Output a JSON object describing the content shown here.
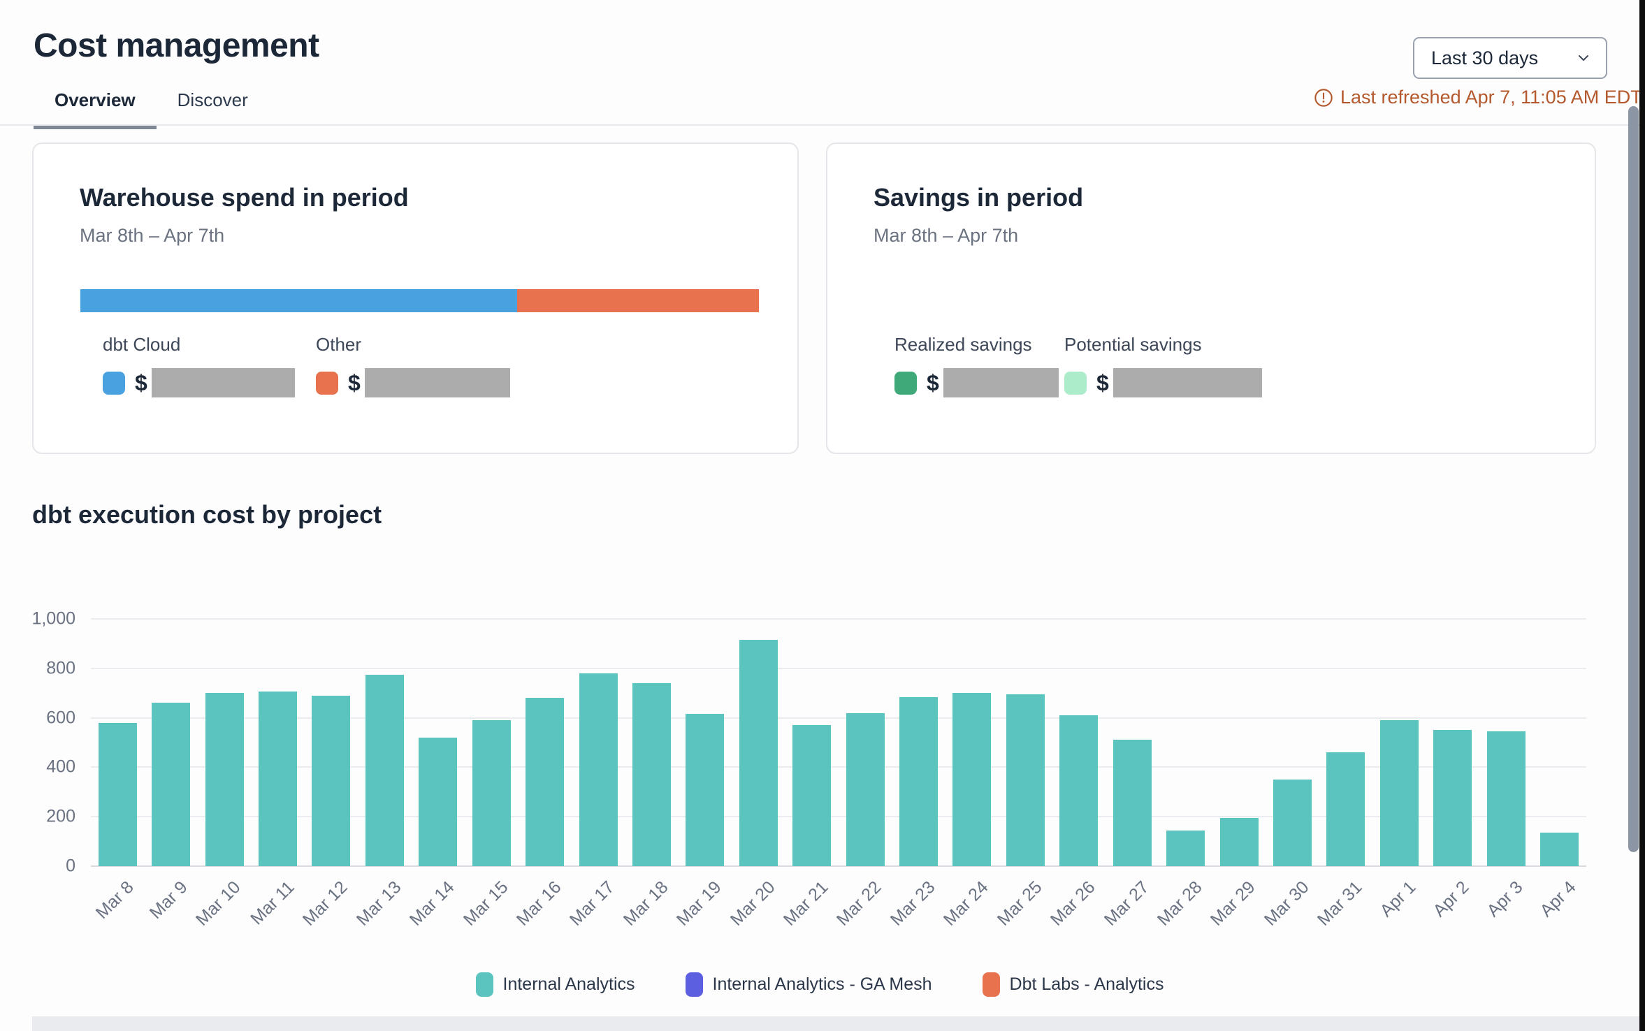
{
  "header": {
    "title": "Cost management",
    "tabs": [
      {
        "label": "Overview",
        "active": true
      },
      {
        "label": "Discover",
        "active": false
      }
    ],
    "date_range_selector": "Last 30 days",
    "last_refreshed": "Last refreshed Apr 7, 11:05 AM EDT"
  },
  "warehouse_spend_card": {
    "title": "Warehouse spend in period",
    "subtitle": "Mar 8th – Apr 7th",
    "bar": {
      "dbt_cloud_pct": 64.4,
      "other_pct": 35.6
    },
    "legend": [
      {
        "label": "dbt Cloud",
        "currency": "$",
        "color": "#4aa1e0",
        "value_redacted": true
      },
      {
        "label": "Other",
        "currency": "$",
        "color": "#e8714e",
        "value_redacted": true
      }
    ]
  },
  "savings_card": {
    "title": "Savings in period",
    "subtitle": "Mar 8th – Apr 7th",
    "legend": [
      {
        "label": "Realized savings",
        "currency": "$",
        "color": "#3fa97a",
        "value_redacted": true
      },
      {
        "label": "Potential savings",
        "currency": "$",
        "color": "#aceccb",
        "value_redacted": true
      }
    ]
  },
  "chart_section": {
    "title": "dbt execution cost by project"
  },
  "chart_data": {
    "type": "bar",
    "title": "dbt execution cost by project",
    "categories": [
      "Mar 8",
      "Mar 9",
      "Mar 10",
      "Mar 11",
      "Mar 12",
      "Mar 13",
      "Mar 14",
      "Mar 15",
      "Mar 16",
      "Mar 17",
      "Mar 18",
      "Mar 19",
      "Mar 20",
      "Mar 21",
      "Mar 22",
      "Mar 23",
      "Mar 24",
      "Mar 25",
      "Mar 26",
      "Mar 27",
      "Mar 28",
      "Mar 29",
      "Mar 30",
      "Mar 31",
      "Apr 1",
      "Apr 2",
      "Apr 3",
      "Apr 4"
    ],
    "series": [
      {
        "name": "Internal Analytics",
        "color": "#5bc4be",
        "values": [
          580,
          660,
          700,
          705,
          690,
          775,
          520,
          590,
          680,
          780,
          740,
          615,
          915,
          570,
          620,
          685,
          700,
          695,
          610,
          510,
          145,
          195,
          350,
          460,
          590,
          550,
          545,
          135
        ]
      },
      {
        "name": "Internal Analytics - GA Mesh",
        "color": "#5b5fe0",
        "values": [
          0,
          0,
          0,
          0,
          0,
          0,
          0,
          0,
          0,
          0,
          0,
          0,
          0,
          0,
          0,
          0,
          0,
          0,
          0,
          0,
          0,
          0,
          0,
          0,
          0,
          0,
          0,
          0
        ]
      },
      {
        "name": "Dbt Labs - Analytics",
        "color": "#e8714e",
        "values": [
          0,
          0,
          0,
          0,
          0,
          0,
          0,
          0,
          0,
          0,
          0,
          0,
          0,
          0,
          0,
          0,
          0,
          0,
          0,
          0,
          0,
          0,
          0,
          0,
          0,
          0,
          0,
          0
        ]
      }
    ],
    "xlabel": "",
    "ylabel": "",
    "ylim": [
      0,
      1000
    ],
    "yticks": [
      {
        "value": 0,
        "label": "0"
      },
      {
        "value": 200,
        "label": "200"
      },
      {
        "value": 400,
        "label": "400"
      },
      {
        "value": 600,
        "label": "600"
      },
      {
        "value": 800,
        "label": "800"
      },
      {
        "value": 1000,
        "label": "1,000"
      }
    ],
    "grid": true,
    "legend_position": "bottom"
  },
  "colors": {
    "bar_teal": "#5bc4be",
    "indigo": "#5b5fe0",
    "orange": "#e8714e",
    "blue": "#4aa1e0",
    "green": "#3fa97a",
    "mint": "#aceccb",
    "redacted_gray": "#acacac",
    "refresh_text": "#b4592e",
    "heading_navy": "#1c2838"
  }
}
